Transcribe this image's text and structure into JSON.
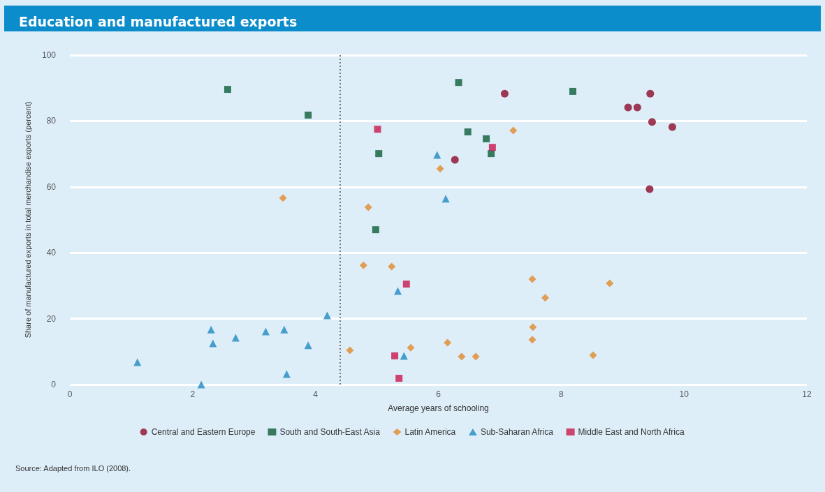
{
  "chart_data": {
    "type": "scatter",
    "title": "Education and manufactured exports",
    "xlabel": "Average years of schooling",
    "ylabel": "Share of manufactured exports in total merchandise exports (percent)",
    "annotations": [
      "Source: Adapted from ILO (2008)."
    ],
    "xlim": [
      0,
      12
    ],
    "xticks": [
      0,
      2,
      4,
      6,
      8,
      10,
      12
    ],
    "ylim": [
      0,
      100
    ],
    "yticks": [
      0,
      20,
      40,
      60,
      80,
      100
    ],
    "grid": "y",
    "legend": "bottom",
    "ref_lines": [
      {
        "axis": "x",
        "value": 4.4,
        "label": null,
        "color": "#777777",
        "line_style": "dotted"
      }
    ],
    "series": [
      {
        "name": "Central and Eastern Europe",
        "color": "#8b0a2a",
        "marker": "circle",
        "x": [
          7.08,
          6.27,
          9.09,
          9.24,
          9.45,
          9.48,
          9.81,
          9.44
        ],
        "values": [
          88.3,
          68.2,
          84.1,
          84.1,
          88.3,
          79.7,
          78.2,
          59.3
        ]
      },
      {
        "name": "South and South-East Asia",
        "color": "#0b5e3a",
        "marker": "square",
        "x": [
          2.57,
          3.88,
          6.33,
          5.03,
          6.48,
          6.78,
          6.86,
          8.19,
          4.98
        ],
        "values": [
          89.6,
          81.8,
          91.7,
          70.1,
          76.7,
          74.6,
          70.1,
          89.0,
          47.0
        ]
      },
      {
        "name": "Latin America",
        "color": "#e08a2c",
        "marker": "diamond",
        "x": [
          3.47,
          4.86,
          6.03,
          7.22,
          4.78,
          5.24,
          7.53,
          7.74,
          8.79,
          4.56,
          5.55,
          6.15,
          6.38,
          6.61,
          7.54,
          7.53,
          8.52
        ],
        "values": [
          56.6,
          53.8,
          65.5,
          77.1,
          36.2,
          35.8,
          32.0,
          26.3,
          30.7,
          10.4,
          11.2,
          12.7,
          8.5,
          8.5,
          17.4,
          13.6,
          8.9
        ]
      },
      {
        "name": "Sub-Saharan Africa",
        "color": "#1f8ac0",
        "marker": "triangle",
        "x": [
          1.1,
          2.14,
          2.3,
          2.33,
          2.7,
          3.19,
          3.49,
          3.53,
          3.88,
          4.19,
          5.34,
          5.44,
          5.98,
          6.12
        ],
        "values": [
          6.8,
          0,
          16.7,
          12.5,
          14.2,
          16.1,
          16.7,
          3.2,
          11.9,
          21.0,
          28.4,
          8.7,
          69.7,
          56.4
        ]
      },
      {
        "name": "Middle East and North Africa",
        "color": "#c8174c",
        "marker": "square",
        "x": [
          5.01,
          6.88,
          5.48,
          5.29,
          5.36
        ],
        "values": [
          77.5,
          72.0,
          30.5,
          8.7,
          1.9
        ]
      }
    ]
  }
}
